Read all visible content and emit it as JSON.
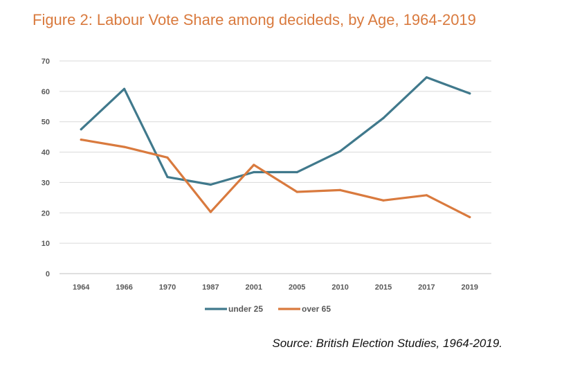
{
  "title": "Figure 2: Labour Vote Share among decideds, by Age, 1964-2019",
  "source": "Source: British Election Studies, 1964-2019.",
  "chart_data": {
    "type": "line",
    "categories": [
      "1964",
      "1966",
      "1970",
      "1987",
      "2001",
      "2005",
      "2010",
      "2015",
      "2017",
      "2019"
    ],
    "series": [
      {
        "name": "under 25",
        "color": "#40798c",
        "values": [
          47.5,
          60.8,
          31.8,
          29.3,
          33.4,
          33.4,
          40.3,
          51.2,
          64.6,
          59.3
        ]
      },
      {
        "name": "over 65",
        "color": "#d97a3e",
        "values": [
          44.1,
          41.7,
          38.2,
          20.3,
          35.8,
          26.9,
          27.5,
          24.1,
          25.8,
          18.6
        ]
      }
    ],
    "ylim": [
      0,
      70
    ],
    "yticks": [
      0,
      10,
      20,
      30,
      40,
      50,
      60,
      70
    ],
    "grid": true,
    "legend": "bottom"
  }
}
